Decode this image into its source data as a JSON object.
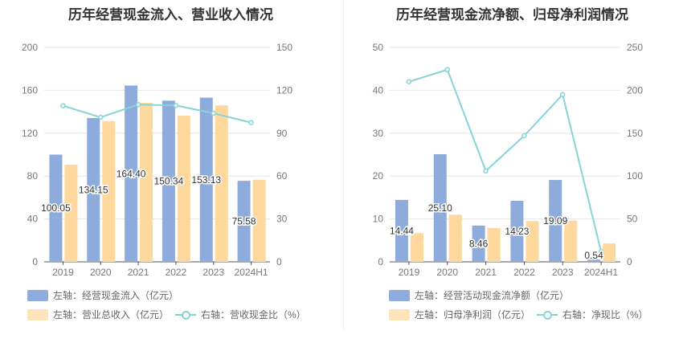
{
  "colors": {
    "bar1": "#8eacdb",
    "bar2": "#fed89d",
    "line": "#86d4d8"
  },
  "chart_data": [
    {
      "type": "bar+line",
      "title": "历年经营现金流入、营业收入情况",
      "categories": [
        "2019",
        "2020",
        "2021",
        "2022",
        "2023",
        "2024H1"
      ],
      "ylim_left": [
        0,
        200
      ],
      "yticks_left": [
        "0",
        "40",
        "80",
        "120",
        "160",
        "200"
      ],
      "ylim_right": [
        0,
        150
      ],
      "yticks_right": [
        "0",
        "30",
        "60",
        "90",
        "120",
        "150"
      ],
      "grid": true,
      "legend": "bottom",
      "series": [
        {
          "name": "左轴：经营现金流入（亿元）",
          "type": "bar",
          "axis": "left",
          "values": [
            100.05,
            134.15,
            164.4,
            150.34,
            153.13,
            75.58
          ],
          "labels": [
            "100.05",
            "134.15",
            "164.40",
            "150.34",
            "153.13",
            "75.58"
          ]
        },
        {
          "name": "左轴：营业总收入（亿元）",
          "type": "bar",
          "axis": "left",
          "values": [
            90.6,
            131.3,
            148.3,
            136.3,
            146.0,
            76.6
          ]
        },
        {
          "name": "右轴：营收现金比（%）",
          "type": "line",
          "axis": "right",
          "values": [
            109.2,
            101.1,
            110.0,
            109.4,
            103.9,
            97.4
          ]
        }
      ]
    },
    {
      "type": "bar+line",
      "title": "历年经营现金流净额、归母净利润情况",
      "categories": [
        "2019",
        "2020",
        "2021",
        "2022",
        "2023",
        "2024H1"
      ],
      "ylim_left": [
        0,
        50
      ],
      "yticks_left": [
        "0",
        "10",
        "20",
        "30",
        "40",
        "50"
      ],
      "ylim_right": [
        0,
        250
      ],
      "yticks_right": [
        "0",
        "50",
        "100",
        "150",
        "200",
        "250"
      ],
      "grid": true,
      "legend": "bottom",
      "series": [
        {
          "name": "左轴：经营活动现金流净额（亿元）",
          "type": "bar",
          "axis": "left",
          "values": [
            14.44,
            25.1,
            8.46,
            14.23,
            19.09,
            0.54
          ],
          "labels": [
            "14.44",
            "25.10",
            "8.46",
            "14.23",
            "19.09",
            "0.54"
          ]
        },
        {
          "name": "左轴：归母净利润（亿元）",
          "type": "bar",
          "axis": "left",
          "values": [
            6.7,
            11.0,
            7.9,
            9.5,
            9.6,
            4.3
          ]
        },
        {
          "name": "右轴：净现比（%）",
          "type": "line",
          "axis": "right",
          "values": [
            210,
            224,
            106,
            147,
            195,
            12
          ]
        }
      ]
    }
  ]
}
